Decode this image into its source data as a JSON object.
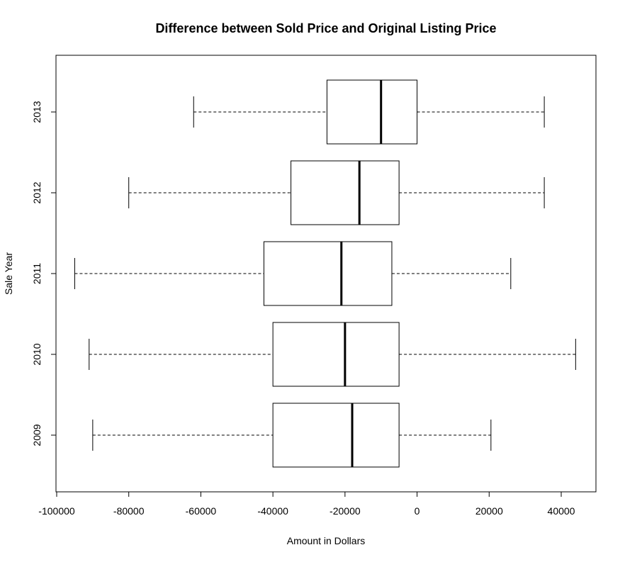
{
  "chart_data": {
    "type": "boxplot",
    "orientation": "horizontal",
    "title": "Difference between Sold Price and Original Listing Price",
    "xlabel": "Amount in Dollars",
    "ylabel": "Sale Year",
    "xlim": [
      -100000,
      50000
    ],
    "x_ticks": [
      -100000,
      -80000,
      -60000,
      -40000,
      -20000,
      0,
      20000,
      40000
    ],
    "x_tick_labels": [
      "-100000",
      "-80000",
      "-60000",
      "-40000",
      "-20000",
      "0",
      "20000",
      "40000"
    ],
    "categories": [
      "2009",
      "2010",
      "2011",
      "2012",
      "2013"
    ],
    "boxes": [
      {
        "category": "2009",
        "whisker_low": -90000,
        "q1": -40000,
        "median": -18000,
        "q3": -5000,
        "whisker_high": 20500
      },
      {
        "category": "2010",
        "whisker_low": -91000,
        "q1": -40000,
        "median": -20000,
        "q3": -5000,
        "whisker_high": 44000
      },
      {
        "category": "2011",
        "whisker_low": -95000,
        "q1": -42500,
        "median": -21000,
        "q3": -7000,
        "whisker_high": 26000
      },
      {
        "category": "2012",
        "whisker_low": -80000,
        "q1": -35000,
        "median": -16000,
        "q3": -5000,
        "whisker_high": 35300
      },
      {
        "category": "2013",
        "whisker_low": -62000,
        "q1": -25000,
        "median": -10000,
        "q3": 0,
        "whisker_high": 35300
      }
    ],
    "grid": false,
    "legend": "none"
  }
}
